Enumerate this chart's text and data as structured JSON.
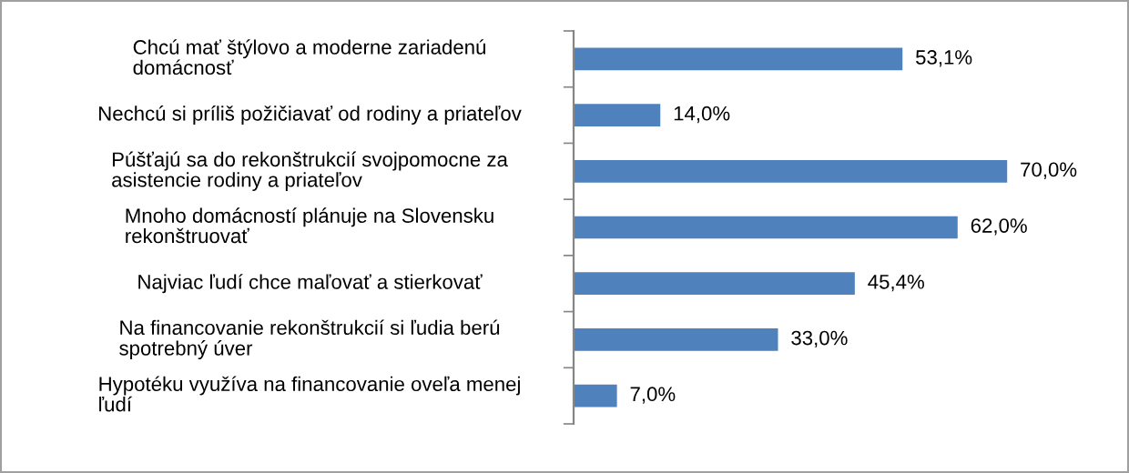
{
  "chart_data": {
    "type": "bar",
    "orientation": "horizontal",
    "categories": [
      "Chcú mať štýlovo a moderne zariadenú domácnosť",
      "Nechcú si príliš požičiavať od rodiny a priateľov",
      "Púšťajú sa do rekonštrukcií svojpomocne za asistencie rodiny a priateľov",
      "Mnoho domácností plánuje na Slovensku rekonštruovať",
      "Najviac ľudí chce maľovať a stierkovať",
      "Na financovanie rekonštrukcií si ľudia berú spotrebný úver",
      "Hypotéku využíva na financovanie oveľa menej ľudí"
    ],
    "values": [
      53.1,
      14.0,
      70.0,
      62.0,
      45.4,
      33.0,
      7.0
    ],
    "value_labels": [
      "53,1%",
      "14,0%",
      "70,0%",
      "62,0%",
      "45,4%",
      "33,0%",
      "7,0%"
    ],
    "color": "#4f81bd",
    "tick_labels": "y",
    "grid": false,
    "legend": false
  }
}
